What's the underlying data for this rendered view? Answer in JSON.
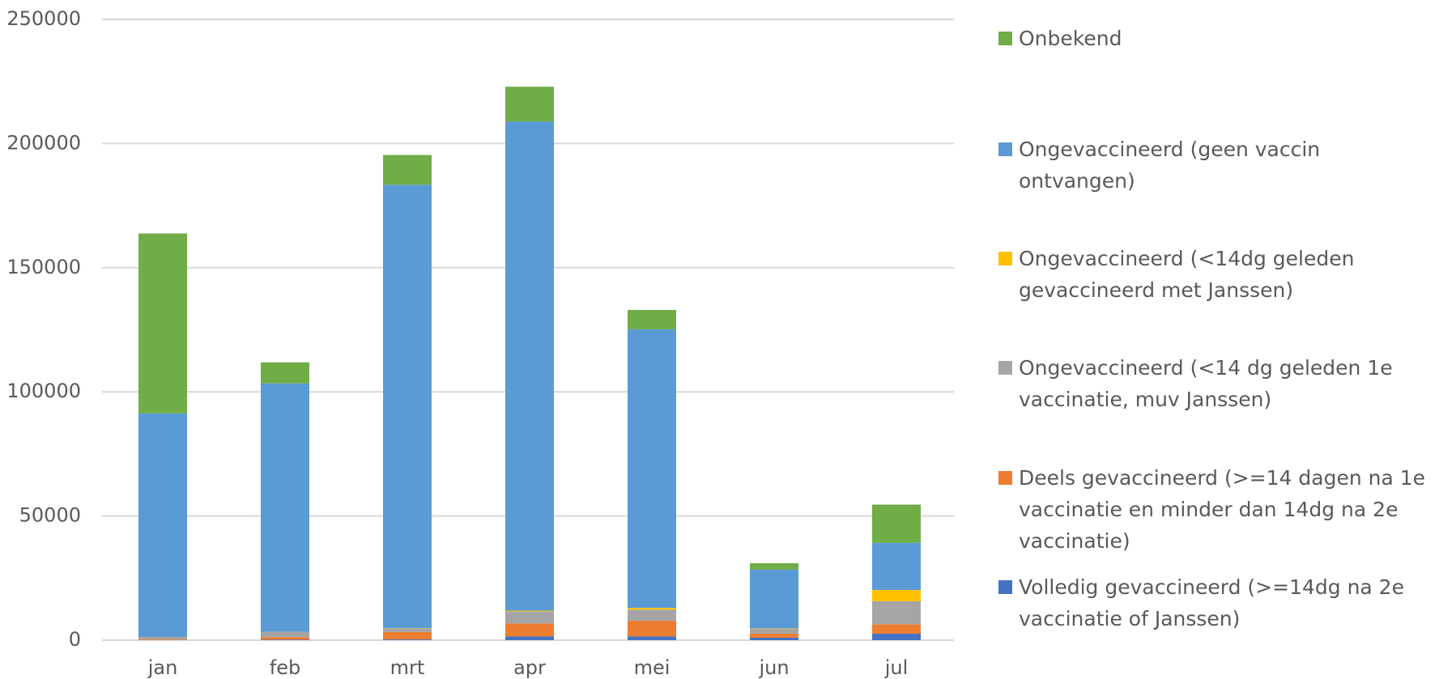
{
  "chart_data": {
    "type": "stacked_bar",
    "categories": [
      "jan",
      "feb",
      "mrt",
      "apr",
      "mei",
      "jun",
      "jul"
    ],
    "series": [
      {
        "name": "Volledig gevaccineerd (>=14dg na 2e vaccinatie of Janssen)",
        "color": "#4472c4",
        "values": [
          0,
          200,
          300,
          1500,
          1500,
          1000,
          2600
        ]
      },
      {
        "name": "Deels gevaccineerd (>=14 dagen na 1e vaccinatie en minder dan 14dg na 2e vaccinatie)",
        "color": "#ed7d31",
        "values": [
          300,
          1000,
          3000,
          5200,
          6300,
          1600,
          3800
        ]
      },
      {
        "name": "Ongevaccineerd (<14 dg geleden 1e vaccinatie, muv Janssen)",
        "color": "#a5a5a5",
        "values": [
          1000,
          2200,
          1500,
          4900,
          4500,
          1900,
          9300
        ]
      },
      {
        "name": "Ongevaccineerd (<14dg geleden gevaccineerd met Janssen)",
        "color": "#ffc000",
        "values": [
          0,
          0,
          100,
          300,
          700,
          200,
          4500
        ]
      },
      {
        "name": "Ongevaccineerd (geen vaccin ontvangen)",
        "color": "#5b9bd5",
        "values": [
          90000,
          100000,
          178500,
          197000,
          112200,
          23700,
          19000
        ]
      },
      {
        "name": "Onbekend",
        "color": "#70ad47",
        "values": [
          72500,
          8500,
          12000,
          14000,
          7800,
          2600,
          15400
        ]
      }
    ],
    "ylim": [
      0,
      250000
    ],
    "yticks": [
      0,
      50000,
      100000,
      150000,
      200000,
      250000
    ],
    "grid": true,
    "legend": "right"
  }
}
